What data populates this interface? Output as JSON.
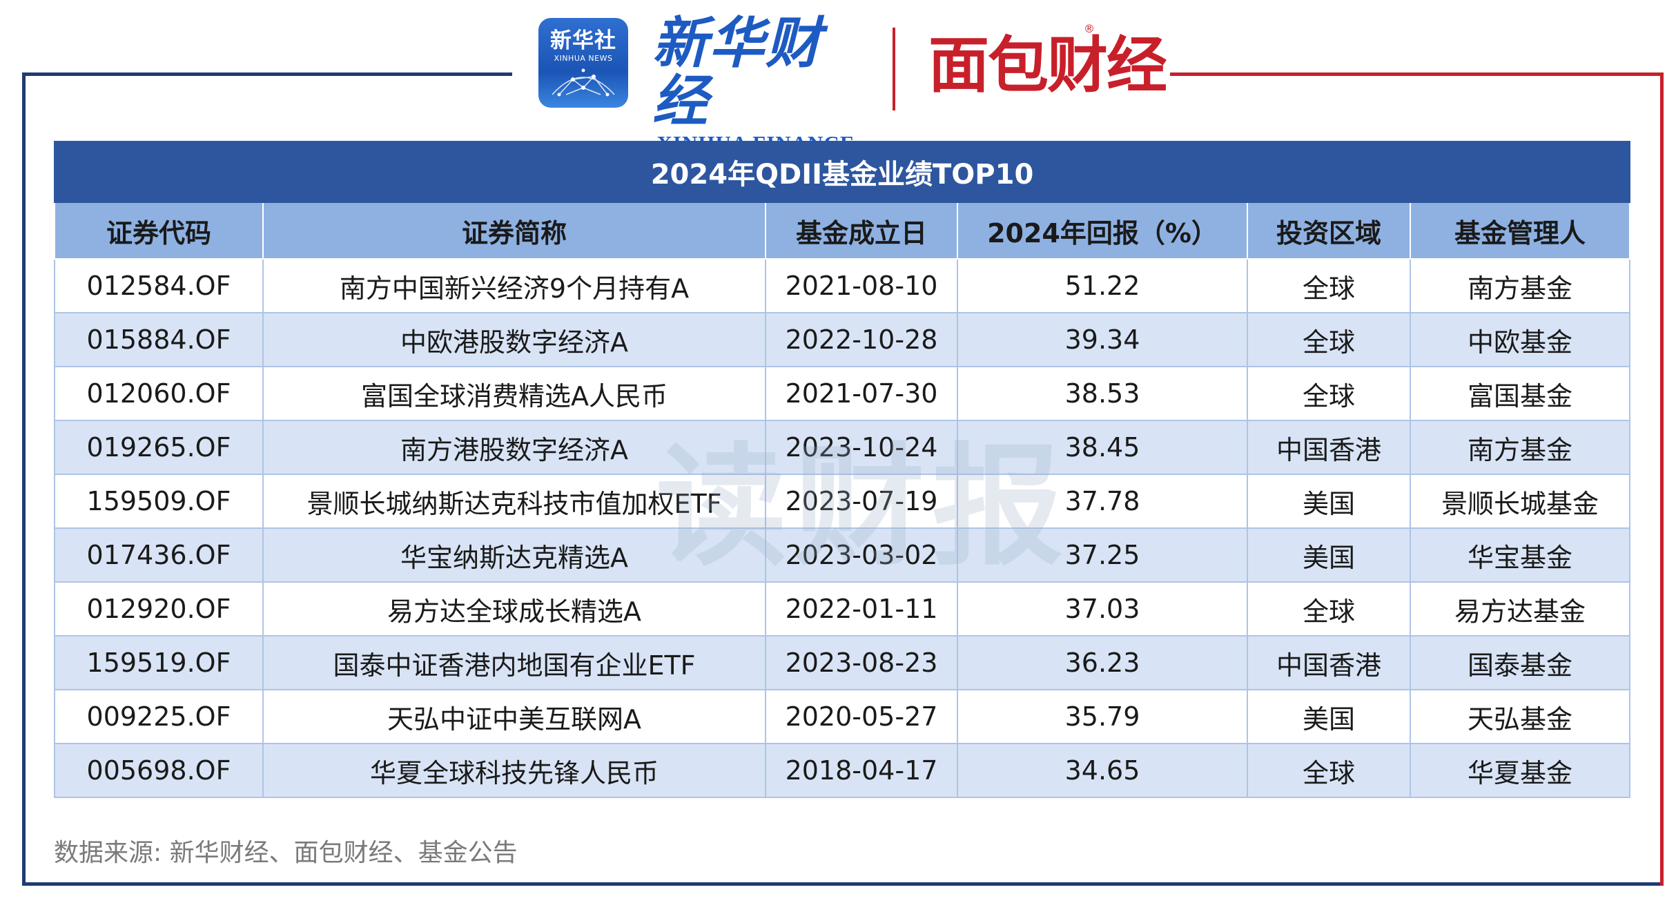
{
  "logos": {
    "xinhua_badge_main": "新华社",
    "xinhua_badge_sub": "XINHUA NEWS",
    "xinhua_finance_cn": "新华财经",
    "xinhua_finance_en": "XINHUA FINANCE",
    "mianbao": "面包财经",
    "registered_mark": "®"
  },
  "colors": {
    "frame_blue": "#1f3b73",
    "frame_red": "#c8202b",
    "title_bg": "#2d569f",
    "header_bg": "#8eb1e2",
    "stripe_bg": "#d8e4f5"
  },
  "table": {
    "title": "2024年QDII基金业绩TOP10",
    "headers": [
      "证券代码",
      "证券简称",
      "基金成立日",
      "2024年回报（%）",
      "投资区域",
      "基金管理人"
    ],
    "rows": [
      [
        "012584.OF",
        "南方中国新兴经济9个月持有A",
        "2021-08-10",
        "51.22",
        "全球",
        "南方基金"
      ],
      [
        "015884.OF",
        "中欧港股数字经济A",
        "2022-10-28",
        "39.34",
        "全球",
        "中欧基金"
      ],
      [
        "012060.OF",
        "富国全球消费精选A人民币",
        "2021-07-30",
        "38.53",
        "全球",
        "富国基金"
      ],
      [
        "019265.OF",
        "南方港股数字经济A",
        "2023-10-24",
        "38.45",
        "中国香港",
        "南方基金"
      ],
      [
        "159509.OF",
        "景顺长城纳斯达克科技市值加权ETF",
        "2023-07-19",
        "37.78",
        "美国",
        "景顺长城基金"
      ],
      [
        "017436.OF",
        "华宝纳斯达克精选A",
        "2023-03-02",
        "37.25",
        "美国",
        "华宝基金"
      ],
      [
        "012920.OF",
        "易方达全球成长精选A",
        "2022-01-11",
        "37.03",
        "全球",
        "易方达基金"
      ],
      [
        "159519.OF",
        "国泰中证香港内地国有企业ETF",
        "2023-08-23",
        "36.23",
        "中国香港",
        "国泰基金"
      ],
      [
        "009225.OF",
        "天弘中证中美互联网A",
        "2020-05-27",
        "35.79",
        "美国",
        "天弘基金"
      ],
      [
        "005698.OF",
        "华夏全球科技先锋人民币",
        "2018-04-17",
        "34.65",
        "全球",
        "华夏基金"
      ]
    ]
  },
  "watermark": "读财报",
  "source_note": "数据来源: 新华财经、面包财经、基金公告"
}
